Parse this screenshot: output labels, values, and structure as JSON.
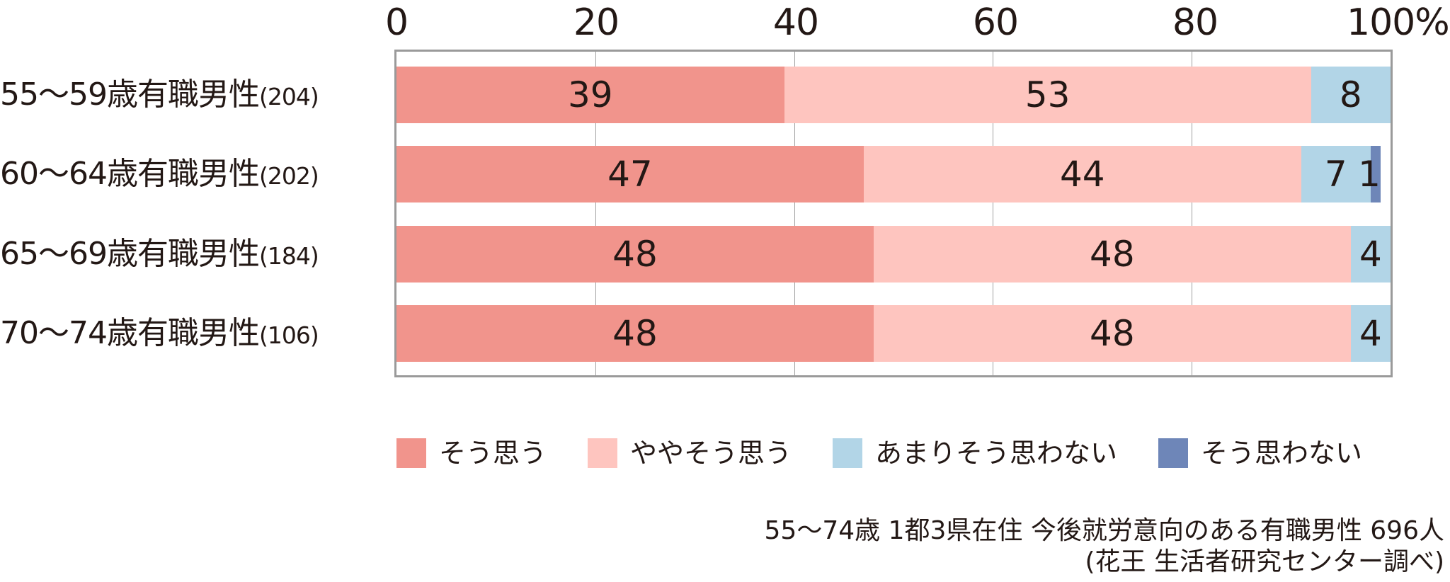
{
  "chart_data": {
    "type": "bar",
    "orientation": "horizontal",
    "stacked": true,
    "title": "",
    "xlabel": "",
    "ylabel": "",
    "xlim": [
      0,
      100
    ],
    "x_ticks": [
      "0",
      "20",
      "40",
      "60",
      "80",
      "100%"
    ],
    "grid": true,
    "legend_position": "bottom",
    "categories": [
      "55〜59歳有職男性(204)",
      "60〜64歳有職男性(202)",
      "65〜69歳有職男性(184)",
      "70〜74歳有職男性(106)"
    ],
    "series": [
      {
        "name": "そう思う",
        "color": "#F1948C",
        "values": [
          39,
          47,
          48,
          48
        ]
      },
      {
        "name": "ややそう思う",
        "color": "#FEC5BF",
        "values": [
          53,
          44,
          48,
          48
        ]
      },
      {
        "name": "あまりそう思わない",
        "color": "#B2D5E7",
        "values": [
          8,
          7,
          4,
          4
        ]
      },
      {
        "name": "そう思わない",
        "color": "#6E86B8",
        "values": [
          0,
          1,
          0,
          0
        ]
      }
    ],
    "annotations": [
      "55〜74歳 1都3県在住 今後就労意向のある有職男性 696人",
      "(花王 生活者研究センター調べ)"
    ]
  },
  "axis": {
    "ticks": [
      {
        "label": "0",
        "pos": 0
      },
      {
        "label": "20",
        "pos": 20
      },
      {
        "label": "40",
        "pos": 40
      },
      {
        "label": "60",
        "pos": 60
      },
      {
        "label": "80",
        "pos": 80
      },
      {
        "label": "100%",
        "pos": 100
      }
    ]
  },
  "rows": [
    {
      "label": "55〜59歳有職男性",
      "n": "(204)",
      "segments": [
        {
          "v": 39,
          "label": "39"
        },
        {
          "v": 53,
          "label": "53"
        },
        {
          "v": 8,
          "label": "8"
        },
        {
          "v": 0,
          "label": ""
        }
      ]
    },
    {
      "label": "60〜64歳有職男性",
      "n": "(202)",
      "segments": [
        {
          "v": 47,
          "label": "47"
        },
        {
          "v": 44,
          "label": "44"
        },
        {
          "v": 7,
          "label": "7"
        },
        {
          "v": 1,
          "label": "1"
        }
      ]
    },
    {
      "label": "65〜69歳有職男性",
      "n": "(184)",
      "segments": [
        {
          "v": 48,
          "label": "48"
        },
        {
          "v": 48,
          "label": "48"
        },
        {
          "v": 4,
          "label": "4"
        },
        {
          "v": 0,
          "label": ""
        }
      ]
    },
    {
      "label": "70〜74歳有職男性",
      "n": "(106)",
      "segments": [
        {
          "v": 48,
          "label": "48"
        },
        {
          "v": 48,
          "label": "48"
        },
        {
          "v": 4,
          "label": "4"
        },
        {
          "v": 0,
          "label": ""
        }
      ]
    }
  ],
  "legend": [
    {
      "label": "そう思う",
      "color": "#F1948C"
    },
    {
      "label": "ややそう思う",
      "color": "#FEC5BF"
    },
    {
      "label": "あまりそう思わない",
      "color": "#B2D5E7"
    },
    {
      "label": "そう思わない",
      "color": "#6E86B8"
    }
  ],
  "note": {
    "line1": "55〜74歳 1都3県在住 今後就労意向のある有職男性 696人",
    "line2": "(花王 生活者研究センター調べ)"
  }
}
